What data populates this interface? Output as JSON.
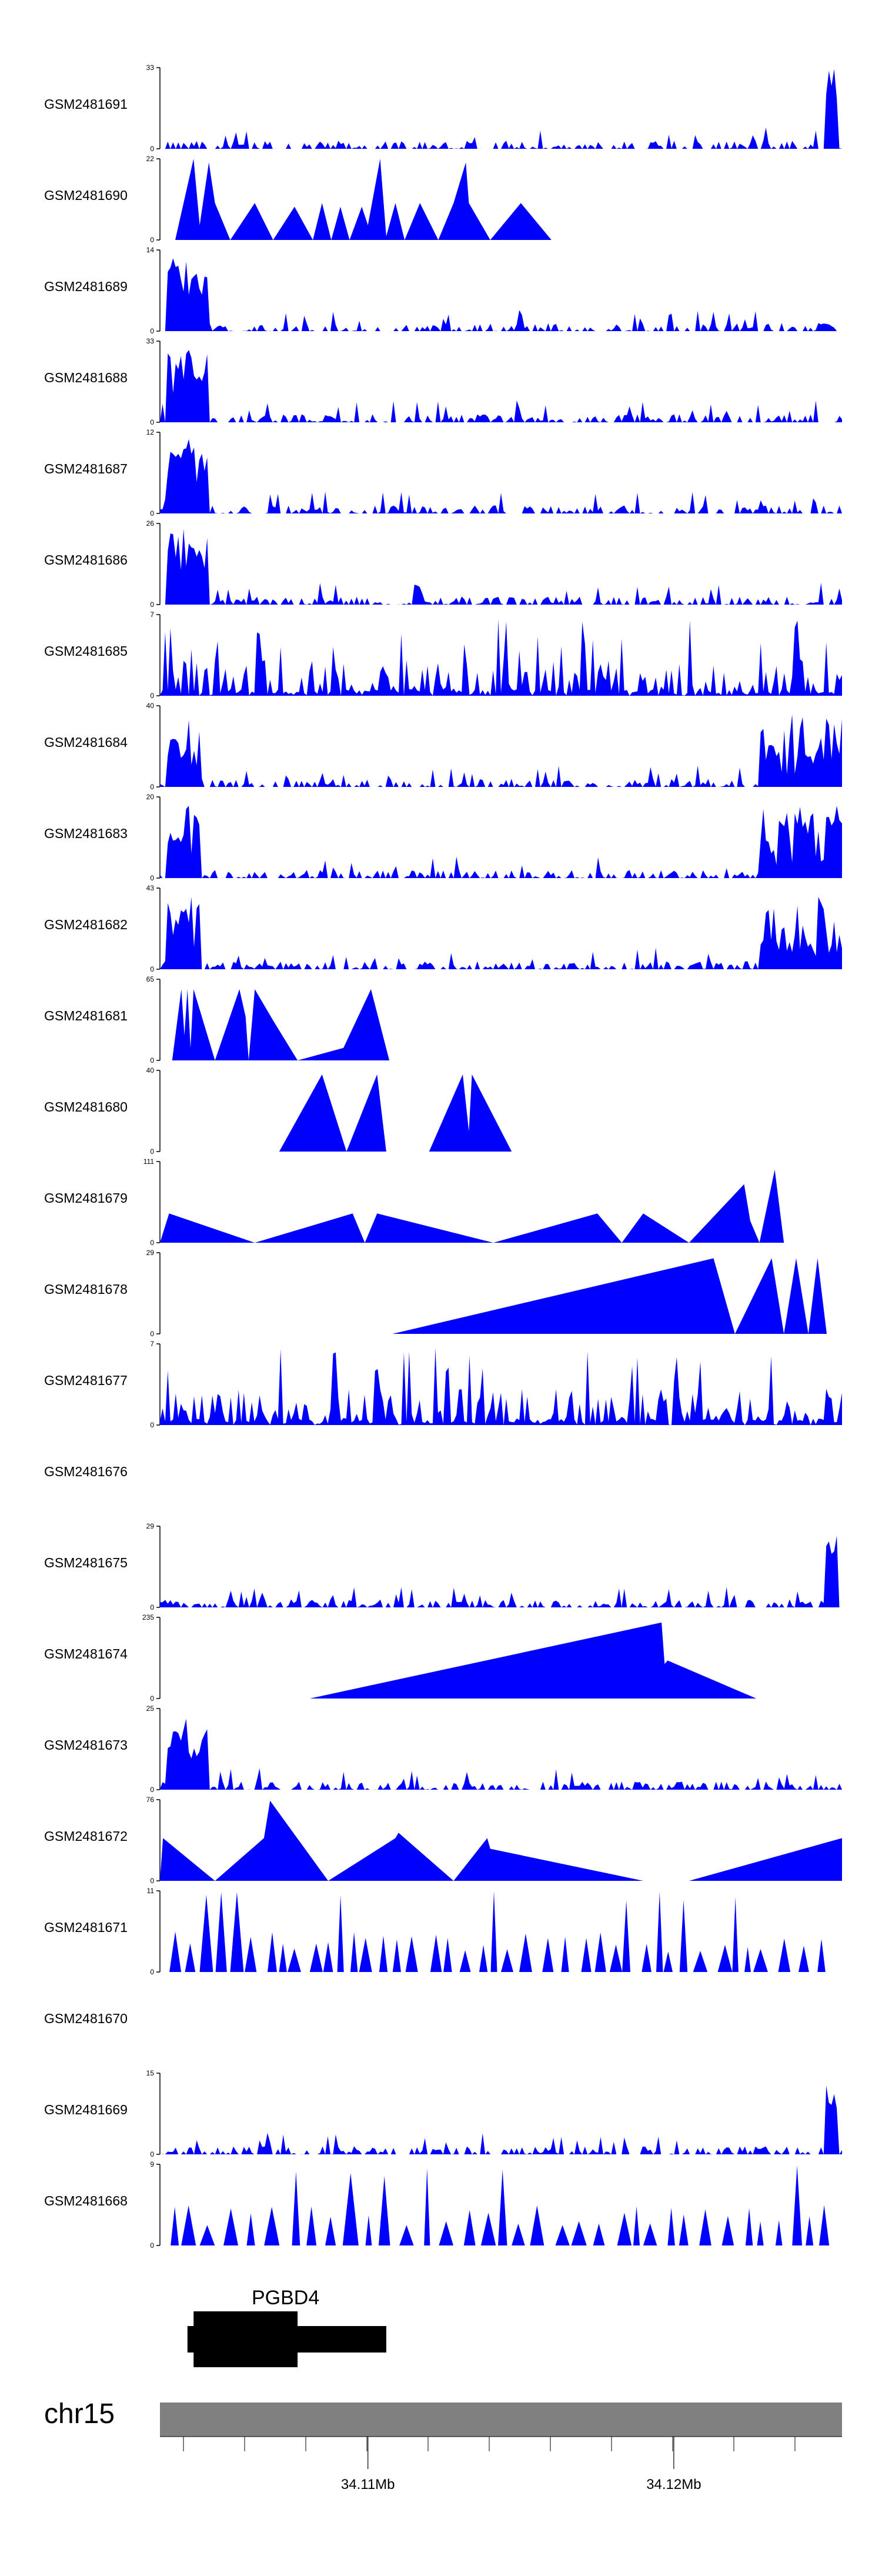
{
  "chart_data": {
    "type": "area",
    "title": "",
    "xlabel": "",
    "ylabel": "",
    "xlim": [
      34.1032,
      34.1255
    ],
    "x_ticks": [
      "34.11Mb",
      "34.12Mb"
    ],
    "x_tick_values": [
      34.11,
      34.12
    ],
    "colors": {
      "fill": "#0000ff",
      "axis": "#000000",
      "ideogram": "#808080"
    },
    "tracks": [
      {
        "name": "GSM2481691",
        "ymax": "33",
        "ymin": "0",
        "pattern": "dense_right_spike",
        "peaks": []
      },
      {
        "name": "GSM2481690",
        "ymax": "22",
        "ymin": "0",
        "pattern": "triangles",
        "peaks": [
          [
            34.1037,
            0
          ],
          [
            34.1043,
            22
          ],
          [
            34.1045,
            4
          ],
          [
            34.1048,
            21
          ],
          [
            34.105,
            10
          ],
          [
            34.1055,
            0
          ],
          [
            34.1063,
            10
          ],
          [
            34.1069,
            0
          ],
          [
            34.1076,
            9
          ],
          [
            34.1082,
            0
          ],
          [
            34.1085,
            10
          ],
          [
            34.1088,
            0
          ],
          [
            34.1091,
            9
          ],
          [
            34.1094,
            0
          ],
          [
            34.1098,
            9
          ],
          [
            34.11,
            4
          ],
          [
            34.1104,
            22
          ],
          [
            34.1106,
            1
          ],
          [
            34.1109,
            10
          ],
          [
            34.1112,
            0
          ],
          [
            34.1117,
            10
          ],
          [
            34.1123,
            0
          ],
          [
            34.1128,
            10
          ],
          [
            34.1132,
            21
          ],
          [
            34.1133,
            10
          ],
          [
            34.114,
            0
          ],
          [
            34.115,
            10
          ],
          [
            34.116,
            0
          ]
        ]
      },
      {
        "name": "GSM2481689",
        "ymax": "14",
        "ymin": "0",
        "pattern": "dense_left_spike",
        "peaks": []
      },
      {
        "name": "GSM2481688",
        "ymax": "33",
        "ymin": "0",
        "pattern": "dense_left_spike",
        "peaks": []
      },
      {
        "name": "GSM2481687",
        "ymax": "12",
        "ymin": "0",
        "pattern": "dense_left_spike",
        "peaks": []
      },
      {
        "name": "GSM2481686",
        "ymax": "26",
        "ymin": "0",
        "pattern": "dense_left_spike",
        "peaks": []
      },
      {
        "name": "GSM2481685",
        "ymax": "7",
        "ymin": "0",
        "pattern": "dense_uniform",
        "peaks": []
      },
      {
        "name": "GSM2481684",
        "ymax": "40",
        "ymin": "0",
        "pattern": "dense_both_ends",
        "peaks": []
      },
      {
        "name": "GSM2481683",
        "ymax": "20",
        "ymin": "0",
        "pattern": "dense_both_ends",
        "peaks": []
      },
      {
        "name": "GSM2481682",
        "ymax": "43",
        "ymin": "0",
        "pattern": "dense_both_ends",
        "peaks": []
      },
      {
        "name": "GSM2481681",
        "ymax": "65",
        "ymin": "0",
        "pattern": "triangles",
        "peaks": [
          [
            34.1036,
            0
          ],
          [
            34.1039,
            57
          ],
          [
            34.104,
            20
          ],
          [
            34.1041,
            57
          ],
          [
            34.1042,
            10
          ],
          [
            34.1043,
            57
          ],
          [
            34.105,
            0
          ],
          [
            34.1058,
            57
          ],
          [
            34.106,
            35
          ],
          [
            34.1061,
            0
          ],
          [
            34.1063,
            57
          ],
          [
            34.1069,
            32
          ],
          [
            34.1077,
            0
          ],
          [
            34.1092,
            10
          ],
          [
            34.1101,
            57
          ],
          [
            34.1107,
            0
          ]
        ]
      },
      {
        "name": "GSM2481680",
        "ymax": "40",
        "ymin": "0",
        "pattern": "triangles",
        "peaks": [
          [
            34.1071,
            0
          ],
          [
            34.1085,
            38
          ],
          [
            34.1093,
            0
          ],
          [
            34.1103,
            38
          ],
          [
            34.1106,
            0
          ],
          [
            34.112,
            0
          ],
          [
            34.1131,
            38
          ],
          [
            34.1133,
            10
          ],
          [
            34.1134,
            38
          ],
          [
            34.1147,
            0
          ]
        ]
      },
      {
        "name": "GSM2481679",
        "ymax": "111",
        "ymin": "0",
        "pattern": "triangles",
        "peaks": [
          [
            34.1032,
            0
          ],
          [
            34.1035,
            40
          ],
          [
            34.1063,
            0
          ],
          [
            34.1095,
            40
          ],
          [
            34.1099,
            0
          ],
          [
            34.1103,
            40
          ],
          [
            34.1141,
            0
          ],
          [
            34.1175,
            40
          ],
          [
            34.1183,
            0
          ],
          [
            34.119,
            40
          ],
          [
            34.1205,
            0
          ],
          [
            34.1223,
            80
          ],
          [
            34.1225,
            30
          ],
          [
            34.1228,
            0
          ],
          [
            34.1233,
            100
          ],
          [
            34.1236,
            0
          ]
        ]
      },
      {
        "name": "GSM2481678",
        "ymax": "29",
        "ymin": "0",
        "pattern": "triangles",
        "peaks": [
          [
            34.1108,
            0
          ],
          [
            34.1213,
            27
          ],
          [
            34.122,
            0
          ],
          [
            34.1232,
            27
          ],
          [
            34.1236,
            0
          ],
          [
            34.124,
            27
          ],
          [
            34.1244,
            0
          ],
          [
            34.1247,
            27
          ],
          [
            34.125,
            0
          ]
        ]
      },
      {
        "name": "GSM2481677",
        "ymax": "7",
        "ymin": "0",
        "pattern": "dense_uniform",
        "peaks": []
      },
      {
        "name": "GSM2481676",
        "ymax": "",
        "ymin": "",
        "pattern": "empty",
        "peaks": []
      },
      {
        "name": "GSM2481675",
        "ymax": "29",
        "ymin": "0",
        "pattern": "dense_right_spike",
        "peaks": []
      },
      {
        "name": "GSM2481674",
        "ymax": "235",
        "ymin": "0",
        "pattern": "triangles",
        "peaks": [
          [
            34.1081,
            0
          ],
          [
            34.1196,
            220
          ],
          [
            34.1197,
            100
          ],
          [
            34.1198,
            110
          ],
          [
            34.1227,
            0
          ]
        ]
      },
      {
        "name": "GSM2481673",
        "ymax": "25",
        "ymin": "0",
        "pattern": "dense_left_spike",
        "peaks": []
      },
      {
        "name": "GSM2481672",
        "ymax": "76",
        "ymin": "0",
        "pattern": "triangles",
        "peaks": [
          [
            34.1032,
            0
          ],
          [
            34.1033,
            40
          ],
          [
            34.105,
            0
          ],
          [
            34.1066,
            40
          ],
          [
            34.1068,
            75
          ],
          [
            34.1087,
            0
          ],
          [
            34.1109,
            40
          ],
          [
            34.111,
            45
          ],
          [
            34.1128,
            0
          ],
          [
            34.1139,
            40
          ],
          [
            34.114,
            30
          ],
          [
            34.119,
            0
          ],
          [
            34.1205,
            0
          ],
          [
            34.1255,
            40
          ],
          [
            34.1255,
            0
          ]
        ]
      },
      {
        "name": "GSM2481671",
        "ymax": "11",
        "ymin": "0",
        "pattern": "sparse_triangles",
        "peaks": []
      },
      {
        "name": "GSM2481670",
        "ymax": "",
        "ymin": "",
        "pattern": "empty",
        "peaks": []
      },
      {
        "name": "GSM2481669",
        "ymax": "15",
        "ymin": "0",
        "pattern": "dense_right_spike",
        "peaks": []
      },
      {
        "name": "GSM2481668",
        "ymax": "9",
        "ymin": "0",
        "pattern": "sparse_triangles",
        "peaks": []
      }
    ],
    "gene": {
      "name": "PGBD4",
      "start": 34.1041,
      "end": 34.1106,
      "thick_start": 34.1043,
      "thick_end": 34.1077
    },
    "chromosome": "chr15"
  }
}
